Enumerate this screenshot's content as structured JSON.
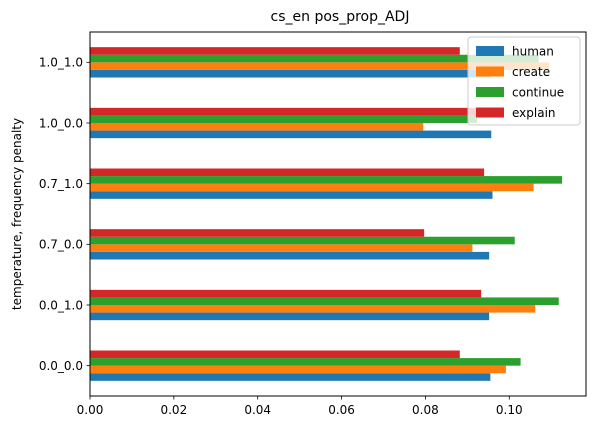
{
  "chart_data": {
    "type": "bar",
    "orientation": "horizontal",
    "title": "cs_en pos_prop_ADJ",
    "xlabel": "",
    "ylabel": "temperature, frequency penalty",
    "categories": [
      "0.0_0.0",
      "0.0_1.0",
      "0.7_0.0",
      "0.7_1.0",
      "1.0_0.0",
      "1.0_1.0"
    ],
    "series": [
      {
        "name": "human",
        "color": "#1f77b4",
        "values": [
          0.0955,
          0.0952,
          0.0952,
          0.096,
          0.0957,
          0.0957
        ]
      },
      {
        "name": "create",
        "color": "#ff7f0e",
        "values": [
          0.0992,
          0.1062,
          0.0912,
          0.1058,
          0.0795,
          0.1095
        ]
      },
      {
        "name": "continue",
        "color": "#2ca02c",
        "values": [
          0.1027,
          0.1118,
          0.1013,
          0.1126,
          0.0923,
          0.107
        ]
      },
      {
        "name": "explain",
        "color": "#d62728",
        "values": [
          0.0882,
          0.0933,
          0.0797,
          0.094,
          0.0938,
          0.0882
        ]
      }
    ],
    "xlim": [
      0,
      0.1183
    ],
    "xticks": [
      0.0,
      0.02,
      0.04,
      0.06,
      0.08,
      0.1
    ],
    "xtick_labels": [
      "0.00",
      "0.02",
      "0.04",
      "0.06",
      "0.08",
      "0.10"
    ],
    "grid": false,
    "legend_position": "top-right"
  }
}
